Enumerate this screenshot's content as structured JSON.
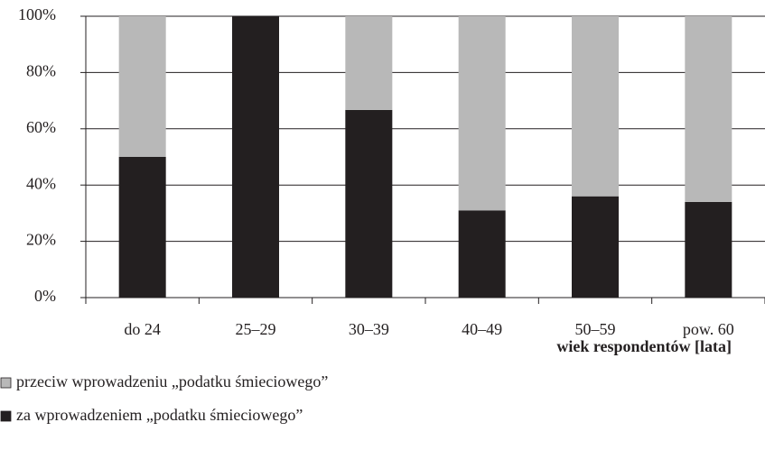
{
  "chart_data": {
    "type": "bar",
    "stacked": true,
    "categories": [
      "do 24",
      "25–29",
      "30–39",
      "40–49",
      "50–59",
      "pow. 60"
    ],
    "series": [
      {
        "name": "przeciw wprowadzeniu „podatku śmieciowego”",
        "color": "#b8b8b8",
        "values": [
          50,
          0,
          33.3,
          69,
          64,
          66
        ]
      },
      {
        "name": "za wprowadzeniem „podatku śmieciowego”",
        "color": "#231f20",
        "values": [
          50,
          100,
          66.7,
          31,
          36,
          34
        ]
      }
    ],
    "xlabel": "wiek respondentów [lata]",
    "ylim": [
      0,
      100
    ],
    "yticks": [
      {
        "value": 0,
        "label": "0%"
      },
      {
        "value": 20,
        "label": "20%"
      },
      {
        "value": 40,
        "label": "40%"
      },
      {
        "value": 60,
        "label": "60%"
      },
      {
        "value": 80,
        "label": "80%"
      },
      {
        "value": 100,
        "label": "100%"
      }
    ],
    "grid": true
  }
}
